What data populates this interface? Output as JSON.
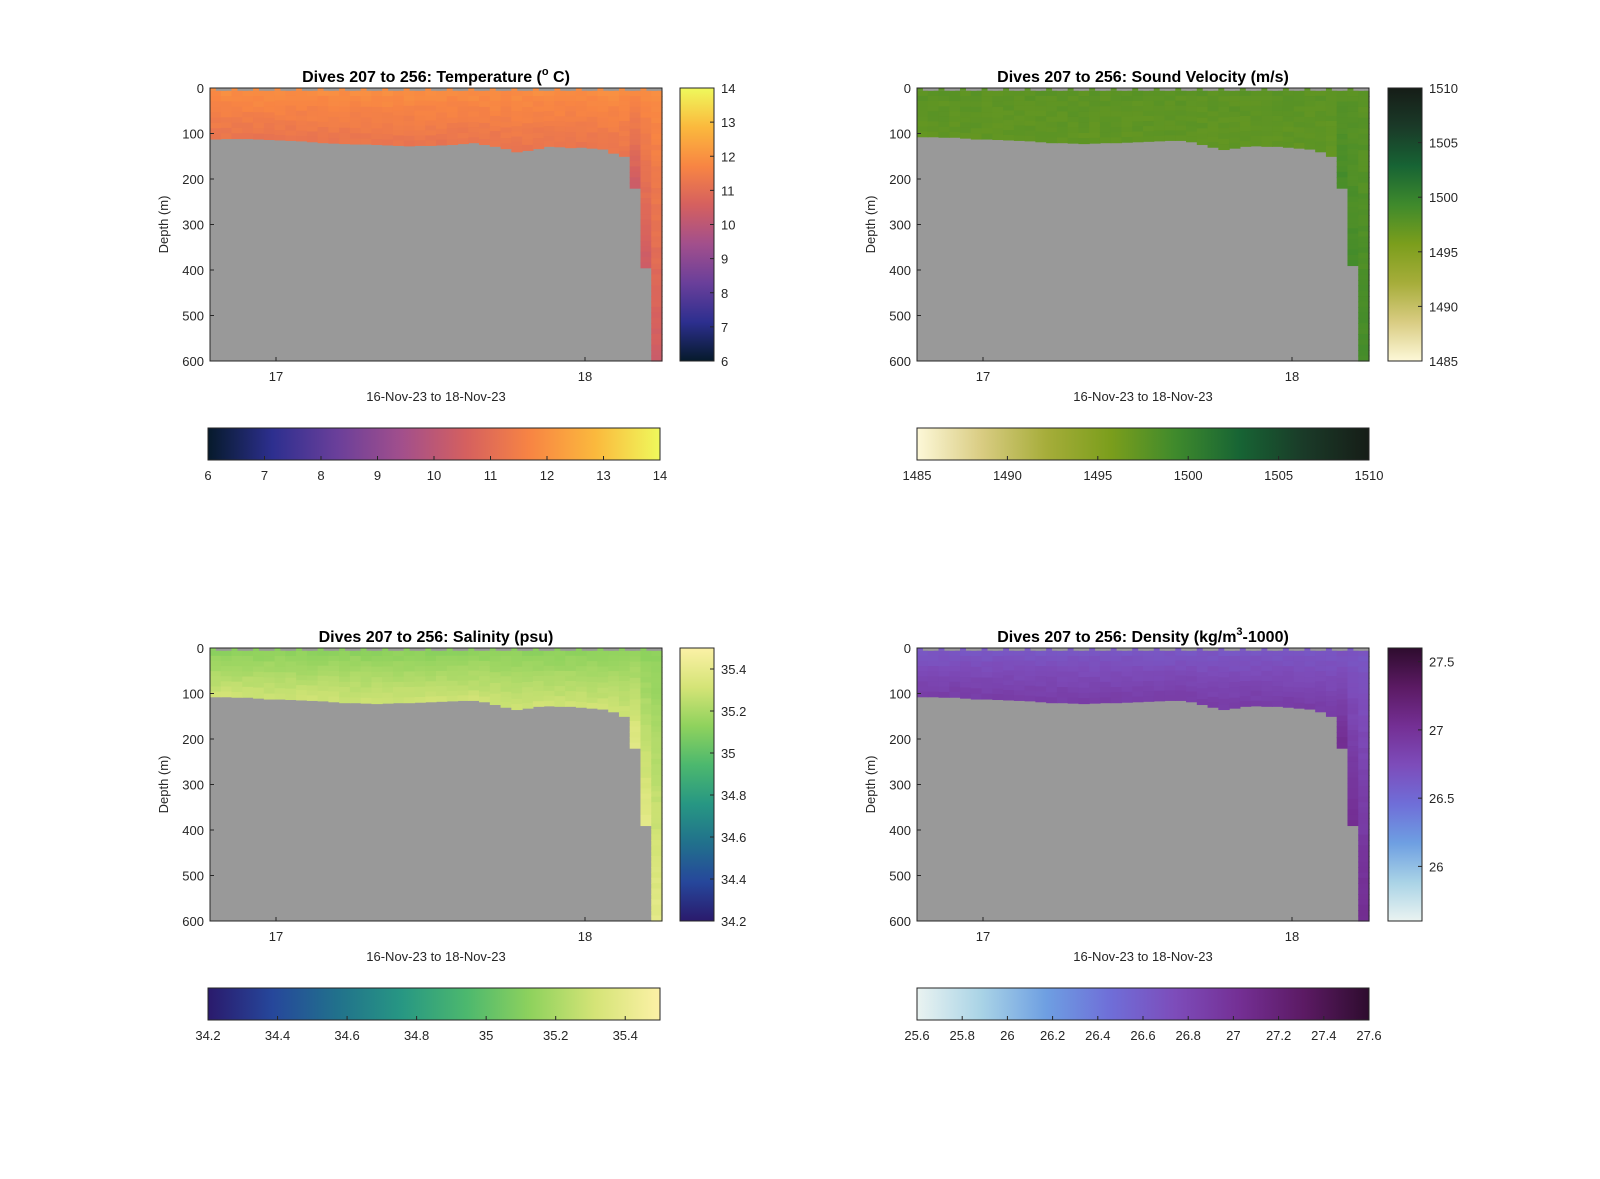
{
  "figure": {
    "background": "#ffffff",
    "land_color": "#999999",
    "time_axis_label": "16-Nov-23 to 18-Nov-23",
    "depth_axis_label": "Depth (m)"
  },
  "chart_data": [
    {
      "type": "heatmap",
      "variable": "temperature",
      "title": "Dives 207 to 256: Temperature (° C)",
      "title_parts": [
        "Dives 207 to 256: Temperature (",
        "o",
        " C)"
      ],
      "xlabel": "16-Nov-23 to 18-Nov-23",
      "ylabel": "Depth (m)",
      "xlim": [
        "16-Nov-23 18:14",
        "18-Nov-23 06:00"
      ],
      "x_ticks": [
        "17",
        "18"
      ],
      "ylim": [
        0,
        600
      ],
      "y_reversed": true,
      "y_ticks": [
        "0",
        "100",
        "200",
        "300",
        "400",
        "500",
        "600"
      ],
      "clim": [
        6,
        14
      ],
      "colorbar_right_ticks": [
        "6",
        "7",
        "8",
        "9",
        "10",
        "11",
        "12",
        "13",
        "14"
      ],
      "colorbar_bottom_ticks": [
        "6",
        "7",
        "8",
        "9",
        "10",
        "11",
        "12",
        "13",
        "14"
      ],
      "colormap": [
        "#061a2b",
        "#2d2f8f",
        "#6a3f9a",
        "#a24f8c",
        "#d5605f",
        "#f88543",
        "#fbb93d",
        "#eff95c"
      ],
      "surface_value": 11.9,
      "bottom_value": 11.2,
      "deep_value": 10.4,
      "profile_max_depth_m": [
        112,
        111,
        111,
        111,
        112,
        113,
        114,
        115,
        116,
        118,
        120,
        121,
        122,
        123,
        123,
        124,
        125,
        126,
        127,
        126,
        126,
        125,
        124,
        122,
        120,
        124,
        128,
        133,
        140,
        137,
        133,
        128,
        129,
        131,
        130,
        132,
        134,
        143,
        150,
        220,
        395,
        600
      ]
    },
    {
      "type": "heatmap",
      "variable": "sound_velocity",
      "title": "Dives 207 to 256: Sound Velocity (m/s)",
      "xlabel": "16-Nov-23 to 18-Nov-23",
      "ylabel": "Depth (m)",
      "xlim": [
        "16-Nov-23 18:14",
        "18-Nov-23 06:00"
      ],
      "x_ticks": [
        "17",
        "18"
      ],
      "ylim": [
        0,
        600
      ],
      "y_reversed": true,
      "y_ticks": [
        "0",
        "100",
        "200",
        "300",
        "400",
        "500",
        "600"
      ],
      "clim": [
        1485,
        1510
      ],
      "colorbar_right_ticks": [
        "1485",
        "1490",
        "1495",
        "1500",
        "1505",
        "1510"
      ],
      "colorbar_bottom_ticks": [
        "1485",
        "1490",
        "1495",
        "1500",
        "1505",
        "1510"
      ],
      "colormap": [
        "#fdf8d8",
        "#d9cc82",
        "#a6ad3a",
        "#7b9e1c",
        "#3f8a2c",
        "#176434",
        "#1a3a28",
        "#161d17"
      ],
      "surface_value": 1497.6,
      "bottom_value": 1497.3,
      "deep_value": 1498.9,
      "profile_max_depth_m": [
        107,
        107,
        108,
        108,
        110,
        112,
        112,
        113,
        114,
        115,
        116,
        118,
        120,
        120,
        121,
        122,
        121,
        120,
        120,
        119,
        118,
        117,
        116,
        115,
        115,
        118,
        124,
        130,
        135,
        132,
        128,
        127,
        128,
        128,
        130,
        132,
        134,
        140,
        150,
        220,
        390,
        600
      ]
    },
    {
      "type": "heatmap",
      "variable": "salinity",
      "title": "Dives 207 to 256: Salinity (psu)",
      "xlabel": "16-Nov-23 to 18-Nov-23",
      "ylabel": "Depth (m)",
      "xlim": [
        "16-Nov-23 18:14",
        "18-Nov-23 06:00"
      ],
      "x_ticks": [
        "17",
        "18"
      ],
      "ylim": [
        0,
        600
      ],
      "y_reversed": true,
      "y_ticks": [
        "0",
        "100",
        "200",
        "300",
        "400",
        "500",
        "600"
      ],
      "clim": [
        34.2,
        35.5
      ],
      "colorbar_right_ticks": [
        "34.2",
        "34.4",
        "34.6",
        "34.8",
        "35",
        "35.2",
        "35.4"
      ],
      "colorbar_bottom_ticks": [
        "34.2",
        "34.4",
        "34.6",
        "34.8",
        "35",
        "35.2",
        "35.4"
      ],
      "colormap": [
        "#2a1a6c",
        "#26479b",
        "#21718c",
        "#279783",
        "#4cb86e",
        "#8fd25d",
        "#d5e477",
        "#fcf1a6"
      ],
      "surface_value": 35.12,
      "bottom_value": 35.3,
      "deep_value": 35.38,
      "profile_max_depth_m": [
        107,
        107,
        108,
        108,
        110,
        112,
        112,
        113,
        114,
        115,
        116,
        118,
        120,
        120,
        121,
        122,
        121,
        120,
        120,
        119,
        118,
        117,
        116,
        115,
        115,
        118,
        124,
        130,
        135,
        132,
        128,
        127,
        128,
        128,
        130,
        132,
        134,
        140,
        150,
        220,
        390,
        600
      ]
    },
    {
      "type": "heatmap",
      "variable": "density",
      "title": "Dives 207 to 256: Density (kg/m³-1000)",
      "title_parts": [
        "Dives 207 to 256: Density (kg/m",
        "3",
        "-1000)"
      ],
      "xlabel": "16-Nov-23 to 18-Nov-23",
      "ylabel": "Depth (m)",
      "xlim": [
        "16-Nov-23 18:14",
        "18-Nov-23 06:00"
      ],
      "x_ticks": [
        "17",
        "18"
      ],
      "ylim": [
        0,
        600
      ],
      "y_reversed": true,
      "y_ticks": [
        "0",
        "100",
        "200",
        "300",
        "400",
        "500",
        "600"
      ],
      "clim": [
        25.6,
        27.6
      ],
      "colorbar_right_ticks": [
        "26",
        "26.5",
        "27",
        "27.5"
      ],
      "colorbar_bottom_ticks": [
        "25.6",
        "25.8",
        "26",
        "26.2",
        "26.4",
        "26.6",
        "26.8",
        "27",
        "27.2",
        "27.4",
        "27.6"
      ],
      "colormap": [
        "#eaf3f1",
        "#a9d3e6",
        "#6e9fe2",
        "#6f6ed8",
        "#7d4cba",
        "#742f94",
        "#5b1a63",
        "#2e0c2e"
      ],
      "surface_value": 26.65,
      "bottom_value": 26.9,
      "deep_value": 27.05,
      "profile_max_depth_m": [
        107,
        107,
        108,
        108,
        110,
        112,
        112,
        113,
        114,
        115,
        116,
        118,
        120,
        120,
        121,
        122,
        121,
        120,
        120,
        119,
        118,
        117,
        116,
        115,
        115,
        118,
        124,
        130,
        135,
        132,
        128,
        127,
        128,
        128,
        130,
        132,
        134,
        140,
        150,
        220,
        390,
        600
      ]
    }
  ]
}
